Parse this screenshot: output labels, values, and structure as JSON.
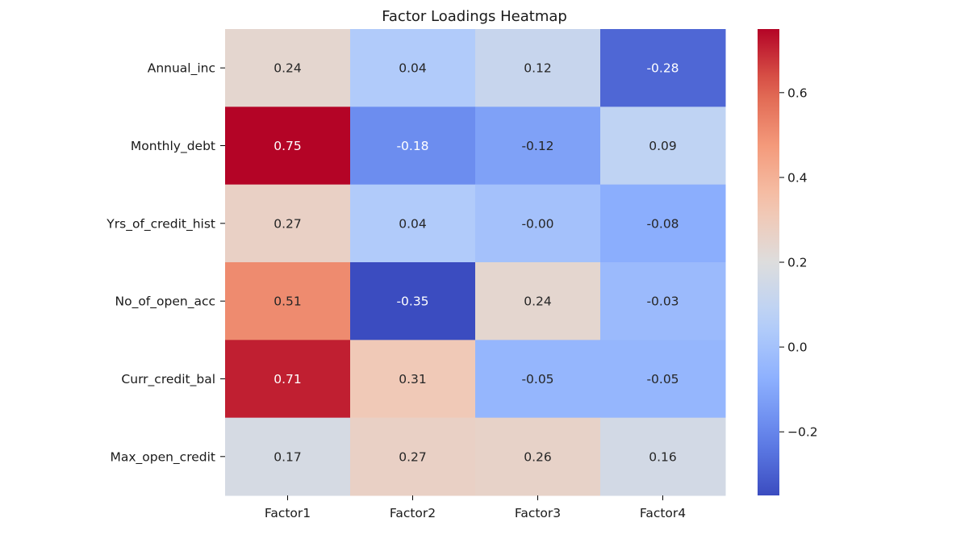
{
  "chart_data": {
    "type": "heatmap",
    "title": "Factor Loadings Heatmap",
    "xlabel": "",
    "ylabel": "",
    "x_categories": [
      "Factor1",
      "Factor2",
      "Factor3",
      "Factor4"
    ],
    "y_categories": [
      "Annual_inc",
      "Monthly_debt",
      "Yrs_of_credit_hist",
      "No_of_open_acc",
      "Curr_credit_bal",
      "Max_open_credit"
    ],
    "values": [
      [
        0.24,
        0.04,
        0.12,
        -0.28
      ],
      [
        0.75,
        -0.18,
        -0.12,
        0.09
      ],
      [
        0.27,
        0.04,
        -0.0,
        -0.08
      ],
      [
        0.51,
        -0.35,
        0.24,
        -0.03
      ],
      [
        0.71,
        0.31,
        -0.05,
        -0.05
      ],
      [
        0.17,
        0.27,
        0.26,
        0.16
      ]
    ],
    "value_labels": [
      [
        "0.24",
        "0.04",
        "0.12",
        "-0.28"
      ],
      [
        "0.75",
        "-0.18",
        "-0.12",
        "0.09"
      ],
      [
        "0.27",
        "0.04",
        "-0.00",
        "-0.08"
      ],
      [
        "0.51",
        "-0.35",
        "0.24",
        "-0.03"
      ],
      [
        "0.71",
        "0.31",
        "-0.05",
        "-0.05"
      ],
      [
        "0.17",
        "0.27",
        "0.26",
        "0.16"
      ]
    ],
    "colormap": "coolwarm",
    "color_range": [
      -0.35,
      0.75
    ],
    "colorbar_ticks": [
      {
        "value": 0.6,
        "label": "0.6"
      },
      {
        "value": 0.4,
        "label": "0.4"
      },
      {
        "value": 0.2,
        "label": "0.2"
      },
      {
        "value": 0.0,
        "label": "0.0"
      },
      {
        "value": -0.2,
        "label": "−0.2"
      }
    ],
    "colorbar": true,
    "grid": false
  }
}
